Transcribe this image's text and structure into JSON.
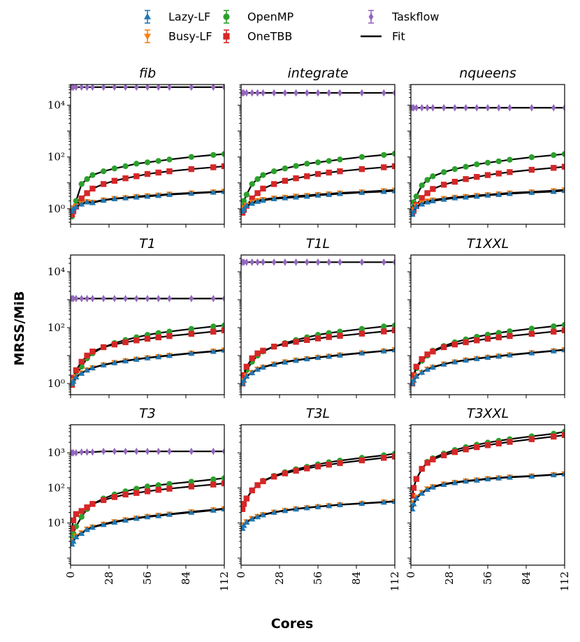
{
  "legend": [
    {
      "name": "Lazy-LF",
      "color": "#1f77b4",
      "marker": "triangle-up",
      "kind": "errorbar"
    },
    {
      "name": "Busy-LF",
      "color": "#ff7f0e",
      "marker": "triangle-down",
      "kind": "errorbar"
    },
    {
      "name": "OpenMP",
      "color": "#2ca02c",
      "marker": "circle",
      "kind": "errorbar"
    },
    {
      "name": "OneTBB",
      "color": "#d62728",
      "marker": "square",
      "kind": "errorbar"
    },
    {
      "name": "Taskflow",
      "color": "#9467bd",
      "marker": "diamond",
      "kind": "errorbar"
    },
    {
      "name": "Fit",
      "color": "#000000",
      "marker": "line",
      "kind": "line"
    }
  ],
  "chart_data": {
    "type": "scatter",
    "ylabel": "MRSS/MiB",
    "xlabel": "Cores",
    "xlim": [
      0,
      112
    ],
    "xticks": [
      "0",
      "28",
      "56",
      "84",
      "112"
    ],
    "yscale": "log",
    "x": [
      1,
      2,
      4,
      8,
      12,
      16,
      24,
      32,
      40,
      48,
      56,
      64,
      72,
      88,
      104,
      112
    ],
    "rows": [
      {
        "ylim_log10": [
          -0.6,
          4.8
        ],
        "yticks": [
          {
            "label": "10⁰",
            "value": 1
          },
          {
            "label": "10²",
            "value": 100
          },
          {
            "label": "10⁴",
            "value": 10000
          }
        ],
        "panels": [
          {
            "title": "fib",
            "series": {
              "Lazy-LF": [
                0.8,
                1.0,
                1.2,
                1.5,
                1.8,
                1.7,
                2.1,
                2.4,
                2.6,
                2.8,
                3.0,
                3.2,
                3.5,
                3.9,
                4.3,
                4.6
              ],
              "Busy-LF": [
                0.9,
                1.1,
                1.3,
                1.6,
                1.9,
                1.8,
                2.2,
                2.5,
                2.7,
                3.0,
                3.2,
                3.4,
                3.7,
                4.1,
                4.5,
                4.8
              ],
              "OpenMP": [
                0.5,
                0.9,
                2.0,
                9.0,
                14.0,
                20.0,
                28.0,
                36.0,
                44.0,
                55.0,
                62.0,
                70.0,
                80.0,
                100.0,
                120.0,
                130.0
              ],
              "OneTBB": [
                0.6,
                0.8,
                1.2,
                2.5,
                4.0,
                6.0,
                9.0,
                12.0,
                15.0,
                18.0,
                22.0,
                25.0,
                28.0,
                34.0,
                40.0,
                44.0
              ],
              "Taskflow": [
                50000,
                50000,
                50000,
                50000,
                50000,
                50000,
                50000,
                50000,
                50000,
                50000,
                50000,
                50000,
                50000,
                50000,
                50000,
                50000
              ]
            }
          },
          {
            "title": "integrate",
            "series": {
              "Lazy-LF": [
                0.8,
                1.0,
                1.3,
                1.6,
                1.9,
                2.1,
                2.4,
                2.6,
                2.8,
                3.0,
                3.3,
                3.5,
                3.8,
                4.2,
                4.6,
                4.9
              ],
              "Busy-LF": [
                0.9,
                1.1,
                1.4,
                1.8,
                2.1,
                2.3,
                2.6,
                2.8,
                3.1,
                3.3,
                3.6,
                3.8,
                4.1,
                4.5,
                5.0,
                5.3
              ],
              "OpenMP": [
                1.2,
                2.0,
                3.5,
                9.0,
                14.0,
                20.0,
                28.0,
                36.0,
                45.0,
                55.0,
                62.0,
                70.0,
                80.0,
                100.0,
                120.0,
                135.0
              ],
              "OneTBB": [
                0.7,
                0.9,
                1.3,
                2.5,
                4.0,
                6.0,
                9.0,
                12.0,
                15.0,
                18.0,
                22.0,
                25.0,
                28.0,
                34.0,
                40.0,
                44.0
              ],
              "Taskflow": [
                30000,
                30000,
                30000,
                30000,
                30000,
                30000,
                30000,
                30000,
                30000,
                30000,
                30000,
                30000,
                30000,
                30000,
                30000,
                30000
              ]
            }
          },
          {
            "title": "nqueens",
            "series": {
              "Lazy-LF": [
                0.6,
                0.8,
                1.2,
                1.5,
                1.8,
                2.0,
                2.3,
                2.6,
                2.8,
                3.0,
                3.3,
                3.5,
                3.8,
                4.2,
                4.6,
                5.0
              ],
              "Busy-LF": [
                0.7,
                0.9,
                1.3,
                1.7,
                2.0,
                2.2,
                2.5,
                2.8,
                3.0,
                3.3,
                3.5,
                3.8,
                4.1,
                4.5,
                5.0,
                5.4
              ],
              "OpenMP": [
                1.0,
                1.8,
                3.0,
                8.0,
                13.0,
                18.0,
                26.0,
                34.0,
                42.0,
                52.0,
                60.0,
                68.0,
                78.0,
                98.0,
                118.0,
                130.0
              ],
              "OneTBB": [
                0.7,
                0.9,
                1.4,
                2.6,
                4.0,
                5.8,
                8.5,
                11.0,
                14.0,
                17.0,
                20.0,
                23.0,
                26.0,
                32.0,
                38.0,
                42.0
              ],
              "Taskflow": [
                8000,
                8000,
                8000,
                8000,
                8000,
                8000,
                8000,
                8000,
                8000,
                8000,
                8000,
                8000,
                8000,
                8000,
                8000,
                8000
              ]
            }
          }
        ]
      },
      {
        "ylim_log10": [
          -0.4,
          4.6
        ],
        "yticks": [
          {
            "label": "10⁰",
            "value": 1
          },
          {
            "label": "10²",
            "value": 100
          },
          {
            "label": "10⁴",
            "value": 10000
          }
        ],
        "panels": [
          {
            "title": "T1",
            "series": {
              "Lazy-LF": [
                1.0,
                1.2,
                1.7,
                2.3,
                3.0,
                3.6,
                4.6,
                5.5,
                6.4,
                7.3,
                8.2,
                9.0,
                10.0,
                12.0,
                14.0,
                15.5
              ],
              "Busy-LF": [
                1.0,
                1.3,
                1.8,
                2.4,
                3.1,
                3.7,
                4.7,
                5.7,
                6.6,
                7.5,
                8.4,
                9.3,
                10.3,
                12.3,
                14.5,
                16.0
              ],
              "OpenMP": [
                1.0,
                1.4,
                2.0,
                4.0,
                8.0,
                12.0,
                20.0,
                28.0,
                36.0,
                45.0,
                55.0,
                64.0,
                72.0,
                90.0,
                110.0,
                120.0
              ],
              "OneTBB": [
                0.9,
                1.6,
                3.0,
                6.0,
                10.0,
                14.0,
                20.0,
                25.0,
                30.0,
                35.0,
                40.0,
                45.0,
                50.0,
                60.0,
                72.0,
                80.0
              ],
              "Taskflow": [
                1100,
                1100,
                1100,
                1100,
                1100,
                1100,
                1100,
                1100,
                1100,
                1100,
                1100,
                1100,
                1100,
                1100,
                1100,
                1100
              ]
            }
          },
          {
            "title": "T1L",
            "series": {
              "Lazy-LF": [
                1.0,
                1.3,
                1.8,
                2.4,
                3.2,
                3.8,
                4.8,
                5.8,
                6.7,
                7.6,
                8.5,
                9.3,
                10.3,
                12.3,
                14.5,
                16.0
              ],
              "Busy-LF": [
                1.0,
                1.3,
                1.9,
                2.5,
                3.3,
                3.9,
                5.0,
                6.0,
                6.9,
                7.8,
                8.7,
                9.6,
                10.6,
                12.6,
                14.8,
                16.5
              ],
              "OpenMP": [
                1.2,
                1.8,
                3.0,
                6.0,
                10.0,
                14.0,
                21.0,
                28.0,
                36.0,
                45.0,
                55.0,
                64.0,
                72.0,
                90.0,
                110.0,
                120.0
              ],
              "OneTBB": [
                1.0,
                2.0,
                4.0,
                8.0,
                12.0,
                15.0,
                21.0,
                26.0,
                31.0,
                36.0,
                41.0,
                46.0,
                51.0,
                61.0,
                73.0,
                80.0
              ],
              "Taskflow": [
                22000,
                22000,
                22000,
                22000,
                22000,
                22000,
                22000,
                22000,
                22000,
                22000,
                22000,
                22000,
                22000,
                22000,
                22000,
                22000
              ]
            }
          },
          {
            "title": "T1XXL",
            "series": {
              "Lazy-LF": [
                1.0,
                1.3,
                1.8,
                2.5,
                3.2,
                3.8,
                4.9,
                5.9,
                6.8,
                7.7,
                8.6,
                9.4,
                10.4,
                12.4,
                14.6,
                16.0
              ],
              "Busy-LF": [
                1.0,
                1.3,
                1.9,
                2.5,
                3.3,
                3.9,
                5.0,
                6.0,
                7.0,
                7.9,
                8.8,
                9.7,
                10.7,
                12.7,
                15.0,
                16.5
              ],
              "OpenMP": [
                1.2,
                2.0,
                3.5,
                6.5,
                10.0,
                15.0,
                22.0,
                30.0,
                38.0,
                47.0,
                56.0,
                65.0,
                74.0,
                92.0,
                112.0,
                125.0
              ],
              "OneTBB": [
                1.0,
                2.0,
                4.0,
                7.5,
                11.0,
                14.0,
                20.0,
                25.0,
                30.0,
                35.0,
                40.0,
                45.0,
                50.0,
                60.0,
                72.0,
                80.0
              ]
            }
          }
        ]
      },
      {
        "ylim_log10": [
          -0.2,
          3.8
        ],
        "yticks": [
          {
            "label": "10¹",
            "value": 10
          },
          {
            "label": "10²",
            "value": 100
          },
          {
            "label": "10³",
            "value": 1000
          }
        ],
        "panels": [
          {
            "title": "T3",
            "series": {
              "Lazy-LF": [
                2.5,
                3.0,
                4.0,
                5.0,
                6.5,
                7.5,
                9.0,
                10.5,
                12.0,
                13.5,
                15.0,
                16.0,
                17.5,
                20.0,
                23.0,
                25.0
              ],
              "Busy-LF": [
                2.6,
                3.2,
                4.3,
                5.3,
                6.8,
                7.8,
                9.4,
                11.0,
                12.5,
                14.0,
                15.5,
                16.8,
                18.0,
                21.0,
                24.0,
                26.0
              ],
              "OpenMP": [
                3.5,
                5.0,
                8.0,
                15.0,
                25.0,
                35.0,
                50.0,
                65.0,
                80.0,
                95.0,
                110.0,
                120.0,
                130.0,
                150.0,
                175.0,
                190.0
              ],
              "OneTBB": [
                7.0,
                12.0,
                18.0,
                22.0,
                28.0,
                35.0,
                45.0,
                55.0,
                65.0,
                72.0,
                80.0,
                88.0,
                95.0,
                110.0,
                125.0,
                135.0
              ],
              "Taskflow": [
                1000,
                1000,
                1000,
                1050,
                1050,
                1050,
                1100,
                1100,
                1100,
                1100,
                1100,
                1100,
                1100,
                1100,
                1100,
                1100
              ]
            }
          },
          {
            "title": "T3L",
            "series": {
              "Lazy-LF": [
                7.0,
                8.5,
                10.5,
                13.0,
                15.0,
                17.0,
                20.0,
                22.5,
                25.0,
                27.0,
                29.0,
                31.0,
                33.0,
                36.0,
                39.0,
                41.0
              ],
              "Busy-LF": [
                7.5,
                9.0,
                11.0,
                13.5,
                15.5,
                17.5,
                20.5,
                23.0,
                25.5,
                27.5,
                29.5,
                31.5,
                33.5,
                36.5,
                40.0,
                42.0
              ],
              "OpenMP": [
                25.0,
                35.0,
                50.0,
                85.0,
                120.0,
                160.0,
                220.0,
                280.0,
                340.0,
                400.0,
                470.0,
                540.0,
                600.0,
                720.0,
                850.0,
                950.0
              ],
              "OneTBB": [
                25.0,
                35.0,
                50.0,
                85.0,
                120.0,
                155.0,
                210.0,
                260.0,
                310.0,
                360.0,
                410.0,
                460.0,
                510.0,
                610.0,
                720.0,
                780.0
              ]
            }
          },
          {
            "title": "T3XXL",
            "series": {
              "Lazy-LF": [
                25.0,
                35.0,
                50.0,
                70.0,
                90.0,
                105.0,
                125.0,
                140.0,
                155.0,
                165.0,
                180.0,
                190.0,
                200.0,
                215.0,
                235.0,
                250.0
              ],
              "Busy-LF": [
                28.0,
                38.0,
                55.0,
                75.0,
                95.0,
                110.0,
                130.0,
                145.0,
                160.0,
                170.0,
                185.0,
                195.0,
                205.0,
                220.0,
                240.0,
                255.0
              ],
              "OpenMP": [
                60.0,
                100.0,
                180.0,
                350.0,
                550.0,
                700.0,
                950.0,
                1200.0,
                1450.0,
                1700.0,
                1950.0,
                2200.0,
                2450.0,
                2950.0,
                3500.0,
                4000.0
              ],
              "OneTBB": [
                60.0,
                100.0,
                180.0,
                350.0,
                520.0,
                650.0,
                850.0,
                1050.0,
                1250.0,
                1450.0,
                1650.0,
                1850.0,
                2050.0,
                2450.0,
                2900.0,
                3200.0
              ]
            }
          }
        ]
      }
    ]
  }
}
